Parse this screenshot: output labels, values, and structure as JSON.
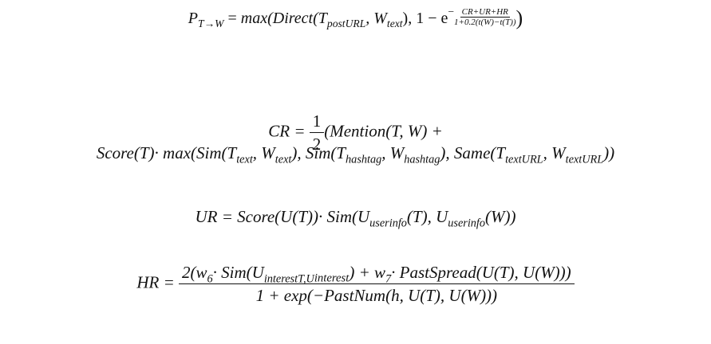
{
  "equations": {
    "p_transfer": {
      "lhs_sym": "P",
      "lhs_sub": "T→W",
      "eq": " = ",
      "fn_max_open": "max(Direct(T",
      "sub_posturl": "postURL",
      "mid": ", W",
      "sub_text": "text",
      "after": "), 1 − e",
      "exp_sign": "−",
      "exp_num": "CR+UR+HR",
      "exp_den": "1+0.2(t(W)−t(T))",
      "close": ")"
    },
    "cr": {
      "line1_lhs": "CR = ",
      "half_num": "1",
      "half_den": "2",
      "line1_rest": "(Mention(T, W) +",
      "line2_a": "Score(T)· max(Sim(T",
      "sub_text1": "text",
      "line2_b": ", W",
      "sub_text2": "text",
      "line2_c": "), Sim(T",
      "sub_hashtag1": "hashtag",
      "line2_d": ", W",
      "sub_hashtag2": "hashtag",
      "line2_e": "), Same(T",
      "sub_texturl1": "textURL",
      "line2_f": ", W",
      "sub_texturl2": "textURL",
      "line2_g": "))"
    },
    "ur": {
      "a": "UR = Score(U(T))· Sim(U",
      "sub1": "userinfo",
      "b": "(T), U",
      "sub2": "userinfo",
      "c": "(W))"
    },
    "hr": {
      "lhs": "HR = ",
      "num_a": "2(w",
      "num_w6_sub": "6",
      "num_b": "· Sim(U",
      "num_sub_a": "interestT,U",
      "num_sub_b": "interest",
      "num_c": ") + w",
      "num_w7_sub": "7",
      "num_d": "· PastSpread(U(T), U(W)))",
      "den": "1 + exp(−PastNum(h, U(T), U(W)))"
    }
  }
}
